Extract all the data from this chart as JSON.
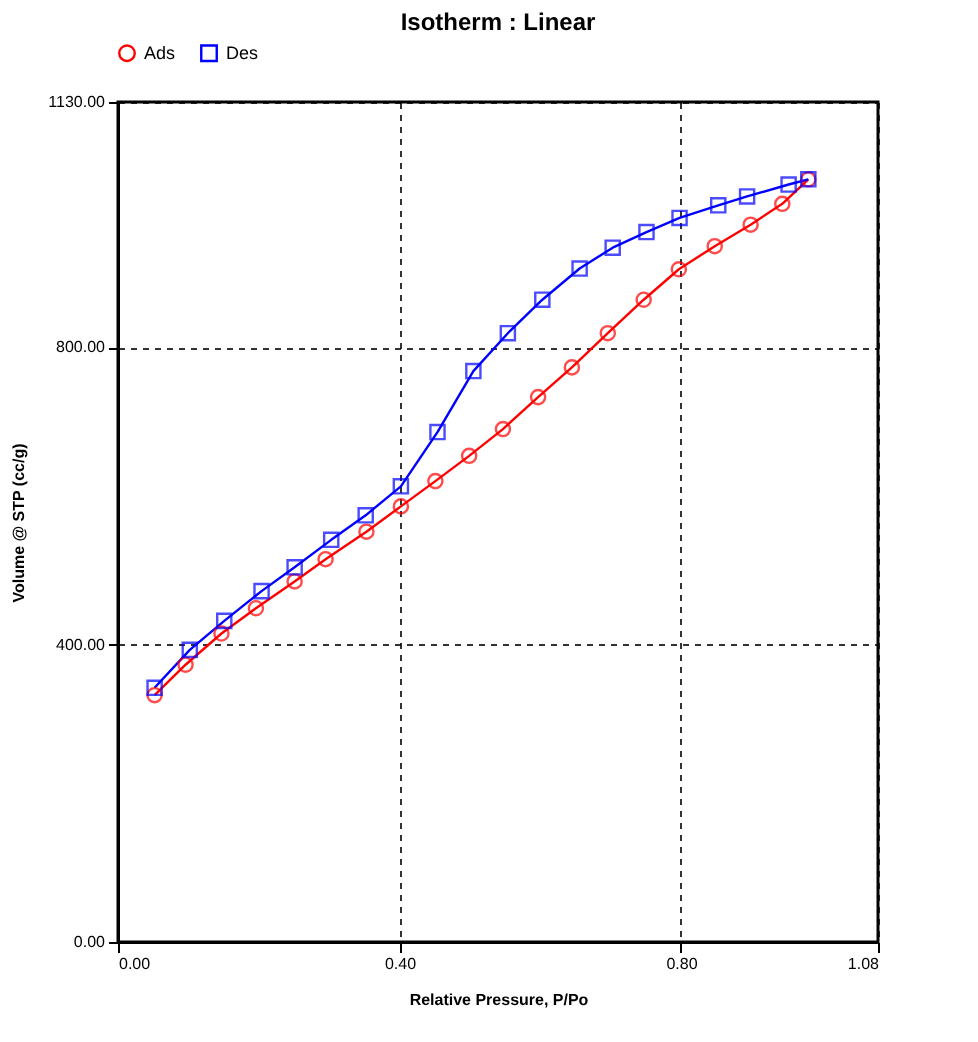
{
  "chart_data": {
    "type": "line",
    "title": "Isotherm :   Linear",
    "xlabel": "Relative Pressure, P/Po",
    "ylabel": "Volume @ STP (cc/g)",
    "xlim": [
      0,
      1.08
    ],
    "ylim": [
      0,
      1130
    ],
    "xticks": [
      {
        "value": 0,
        "label": "0.00"
      },
      {
        "value": 0.4,
        "label": "0.40"
      },
      {
        "value": 0.8,
        "label": "0.80"
      },
      {
        "value": 1.08,
        "label": "1.08"
      }
    ],
    "yticks": [
      {
        "value": 0,
        "label": "0.00"
      },
      {
        "value": 400,
        "label": "400.00"
      },
      {
        "value": 800,
        "label": "800.00"
      },
      {
        "value": 1130,
        "label": "1130.00"
      }
    ],
    "grid": true,
    "legend": "top left",
    "line_style": "solid",
    "series": [
      {
        "name": "Ads",
        "color": "#ff0000",
        "marker": "circle",
        "x": [
          0.052,
          0.096,
          0.147,
          0.196,
          0.251,
          0.295,
          0.353,
          0.402,
          0.451,
          0.499,
          0.547,
          0.597,
          0.645,
          0.696,
          0.747,
          0.797,
          0.848,
          0.899,
          0.944,
          0.981
        ],
        "values": [
          332,
          373,
          415,
          449,
          485,
          515,
          552,
          586,
          620,
          654,
          690,
          733,
          773,
          819,
          864,
          905,
          936,
          965,
          993,
          1026
        ]
      },
      {
        "name": "Des",
        "color": "#0000ff",
        "marker": "square",
        "x": [
          0.052,
          0.102,
          0.151,
          0.204,
          0.251,
          0.303,
          0.352,
          0.402,
          0.454,
          0.505,
          0.554,
          0.603,
          0.656,
          0.703,
          0.751,
          0.798,
          0.853,
          0.894,
          0.953,
          0.981
        ],
        "values": [
          342,
          393,
          432,
          472,
          504,
          541,
          574,
          613,
          686,
          768,
          819,
          864,
          906,
          934,
          955,
          974,
          991,
          1003,
          1019,
          1026
        ]
      }
    ]
  }
}
